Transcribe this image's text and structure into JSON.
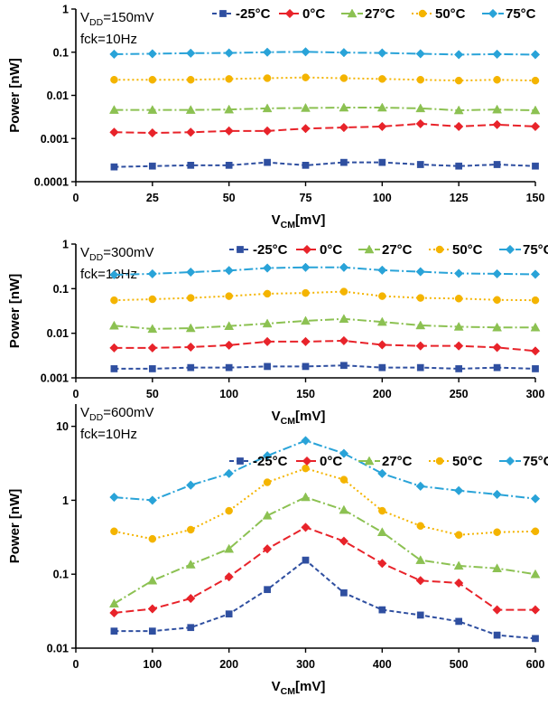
{
  "chart_data": [
    {
      "type": "line",
      "annotation": {
        "line1_main": "V",
        "line1_sub": "DD",
        "line1_rest": "=150mV",
        "line2": "fck=10Hz"
      },
      "ylabel": "Power [nW]",
      "xlabel_main": "V",
      "xlabel_sub": "CM",
      "xlabel_rest": "[mV]",
      "yscale": "log",
      "ylim": [
        0.0001,
        1
      ],
      "yticks": [
        0.0001,
        0.001,
        0.01,
        0.1,
        1
      ],
      "ytick_labels": [
        "0.0001",
        "0.001",
        "0.01",
        "0.1",
        "1"
      ],
      "xlim": [
        0,
        150
      ],
      "xticks": [
        0,
        25,
        50,
        75,
        100,
        125,
        150
      ],
      "xtick_labels": [
        "0",
        "25",
        "50",
        "75",
        "100",
        "125",
        "150"
      ],
      "x": [
        12.5,
        25,
        37.5,
        50,
        62.5,
        75,
        87.5,
        100,
        112.5,
        125,
        137.5,
        150
      ],
      "legend_position": "top",
      "series": [
        {
          "name": "-25°C",
          "color": "#2f4fa0",
          "marker": "square",
          "dash": "5,3",
          "values": [
            0.00022,
            0.00023,
            0.00024,
            0.00024,
            0.00028,
            0.00024,
            0.00028,
            0.00028,
            0.00025,
            0.00023,
            0.00025,
            0.00023
          ]
        },
        {
          "name": "0°C",
          "color": "#e8232a",
          "marker": "diamond",
          "dash": "9,4",
          "values": [
            0.0014,
            0.00135,
            0.0014,
            0.0015,
            0.0015,
            0.0017,
            0.0018,
            0.0019,
            0.0022,
            0.0019,
            0.0021,
            0.0019
          ]
        },
        {
          "name": "27°C",
          "color": "#8cc152",
          "marker": "triangle",
          "dash": "10,3,2,3",
          "values": [
            0.0046,
            0.0046,
            0.0046,
            0.0047,
            0.005,
            0.0051,
            0.0052,
            0.0052,
            0.005,
            0.0045,
            0.0047,
            0.0045
          ]
        },
        {
          "name": "50°C",
          "color": "#f4b400",
          "marker": "circle",
          "dash": "2,3",
          "values": [
            0.023,
            0.023,
            0.023,
            0.024,
            0.025,
            0.026,
            0.025,
            0.024,
            0.023,
            0.022,
            0.023,
            0.022
          ]
        },
        {
          "name": "75°C",
          "color": "#29a3d8",
          "marker": "diamond",
          "dash": "10,3,2,3",
          "values": [
            0.09,
            0.092,
            0.095,
            0.096,
            0.1,
            0.102,
            0.098,
            0.096,
            0.092,
            0.088,
            0.09,
            0.088
          ]
        }
      ]
    },
    {
      "type": "line",
      "annotation": {
        "line1_main": "V",
        "line1_sub": "DD",
        "line1_rest": "=300mV",
        "line2": "fck=10Hz"
      },
      "ylabel": "Power [nW]",
      "xlabel_main": "V",
      "xlabel_sub": "CM",
      "xlabel_rest": "[mV]",
      "yscale": "log",
      "ylim": [
        0.001,
        1
      ],
      "yticks": [
        0.001,
        0.01,
        0.1,
        1
      ],
      "ytick_labels": [
        "0.001",
        "0.01",
        "0.1",
        "1"
      ],
      "xlim": [
        0,
        300
      ],
      "xticks": [
        0,
        50,
        100,
        150,
        200,
        250,
        300
      ],
      "xtick_labels": [
        "0",
        "50",
        "100",
        "150",
        "200",
        "250",
        "300"
      ],
      "x": [
        25,
        50,
        75,
        100,
        125,
        150,
        175,
        200,
        225,
        250,
        275,
        300
      ],
      "legend_position": "top-right",
      "series": [
        {
          "name": "-25°C",
          "color": "#2f4fa0",
          "marker": "square",
          "dash": "5,3",
          "values": [
            0.0016,
            0.0016,
            0.0017,
            0.0017,
            0.0018,
            0.0018,
            0.0019,
            0.0017,
            0.0017,
            0.0016,
            0.0017,
            0.0016
          ]
        },
        {
          "name": "0°C",
          "color": "#e8232a",
          "marker": "diamond",
          "dash": "9,4",
          "values": [
            0.0047,
            0.0047,
            0.0049,
            0.0054,
            0.0065,
            0.0065,
            0.0068,
            0.0055,
            0.0052,
            0.0052,
            0.0048,
            0.004
          ]
        },
        {
          "name": "27°C",
          "color": "#8cc152",
          "marker": "triangle",
          "dash": "10,3,2,3",
          "values": [
            0.0148,
            0.0125,
            0.013,
            0.0145,
            0.0165,
            0.019,
            0.021,
            0.018,
            0.015,
            0.014,
            0.0135,
            0.0135
          ]
        },
        {
          "name": "50°C",
          "color": "#f4b400",
          "marker": "circle",
          "dash": "2,3",
          "values": [
            0.055,
            0.058,
            0.062,
            0.068,
            0.077,
            0.08,
            0.086,
            0.068,
            0.062,
            0.06,
            0.056,
            0.055
          ]
        },
        {
          "name": "75°C",
          "color": "#29a3d8",
          "marker": "diamond",
          "dash": "10,3,2,3",
          "values": [
            0.205,
            0.215,
            0.235,
            0.255,
            0.29,
            0.3,
            0.3,
            0.26,
            0.24,
            0.22,
            0.215,
            0.21
          ]
        }
      ]
    },
    {
      "type": "line",
      "annotation": {
        "line1_main": "V",
        "line1_sub": "DD",
        "line1_rest": "=600mV",
        "line2": "fck=10Hz"
      },
      "ylabel": "Power [nW]",
      "xlabel_main": "V",
      "xlabel_sub": "CM",
      "xlabel_rest": "[mV]",
      "yscale": "log",
      "ylim": [
        0.01,
        20
      ],
      "yticks": [
        0.01,
        0.1,
        1,
        10
      ],
      "ytick_labels": [
        "0.01",
        "0.1",
        "1",
        "10"
      ],
      "xlim": [
        0,
        600
      ],
      "xticks": [
        0,
        100,
        200,
        300,
        400,
        500,
        600
      ],
      "xtick_labels": [
        "0",
        "100",
        "200",
        "300",
        "400",
        "500",
        "600"
      ],
      "x": [
        50,
        100,
        150,
        200,
        250,
        300,
        350,
        400,
        450,
        500,
        550,
        600
      ],
      "legend_position": "top-right",
      "series": [
        {
          "name": "-25°C",
          "color": "#2f4fa0",
          "marker": "square",
          "dash": "5,3",
          "values": [
            0.017,
            0.017,
            0.019,
            0.029,
            0.062,
            0.155,
            0.056,
            0.033,
            0.028,
            0.023,
            0.015,
            0.0135
          ]
        },
        {
          "name": "0°C",
          "color": "#e8232a",
          "marker": "diamond",
          "dash": "9,4",
          "values": [
            0.03,
            0.034,
            0.047,
            0.092,
            0.22,
            0.43,
            0.28,
            0.14,
            0.082,
            0.076,
            0.033,
            0.033
          ]
        },
        {
          "name": "27°C",
          "color": "#8cc152",
          "marker": "triangle",
          "dash": "10,3,2,3",
          "values": [
            0.04,
            0.082,
            0.135,
            0.22,
            0.62,
            1.1,
            0.74,
            0.37,
            0.155,
            0.13,
            0.12,
            0.1
          ]
        },
        {
          "name": "50°C",
          "color": "#f4b400",
          "marker": "circle",
          "dash": "2,3",
          "values": [
            0.38,
            0.3,
            0.4,
            0.72,
            1.75,
            2.7,
            1.9,
            0.72,
            0.45,
            0.34,
            0.37,
            0.38
          ]
        },
        {
          "name": "75°C",
          "color": "#29a3d8",
          "marker": "diamond",
          "dash": "10,3,2,3",
          "values": [
            1.1,
            1.0,
            1.6,
            2.3,
            4.0,
            6.4,
            4.3,
            2.3,
            1.55,
            1.35,
            1.2,
            1.05
          ]
        }
      ]
    }
  ]
}
